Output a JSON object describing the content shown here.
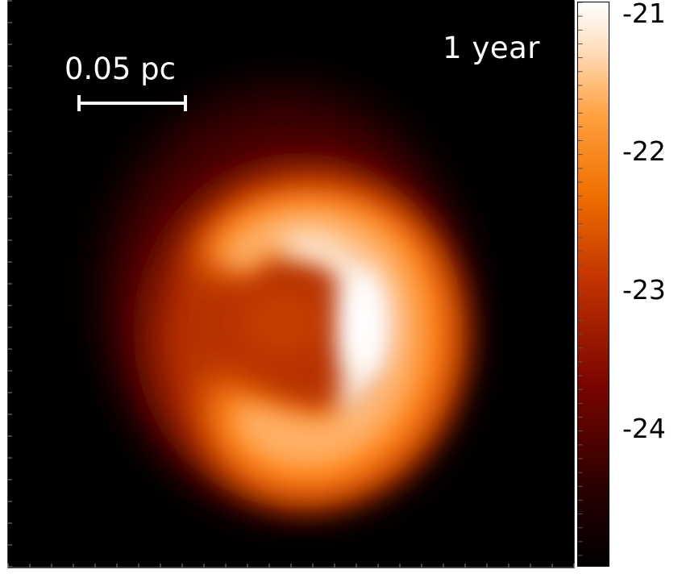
{
  "figure": {
    "time_label": "1 year",
    "scale_bar": {
      "label": "0.05 pc"
    }
  },
  "colorbar": {
    "ticks": [
      "-21",
      "-22",
      "-23",
      "-24"
    ],
    "colormap": "hot",
    "colors": [
      "#000000",
      "#3a0000",
      "#8a0800",
      "#c23c00",
      "#f07a00",
      "#ffa64d",
      "#ffe4c4",
      "#ffffff"
    ]
  }
}
